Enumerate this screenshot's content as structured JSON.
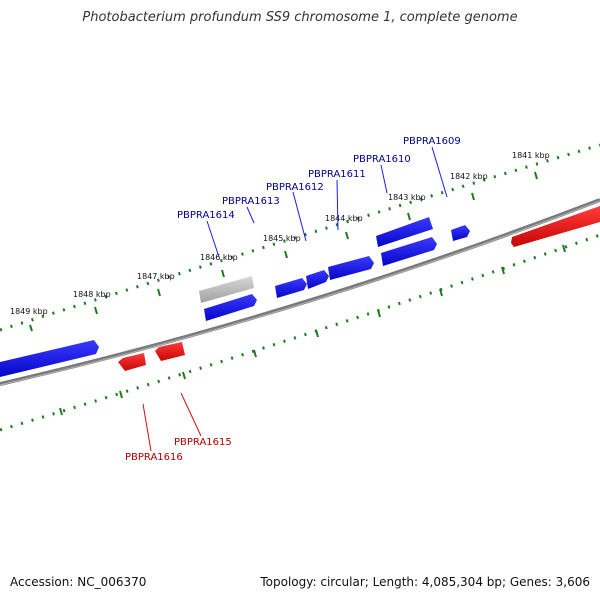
{
  "title": "Photobacterium profundum SS9 chromosome 1, complete genome",
  "footer": {
    "accession": "Accession: NC_006370",
    "summary": "Topology: circular; Length: 4,085,304 bp; Genes: 3,606"
  },
  "colors": {
    "forward_gene": "#1010ee",
    "reverse_gene": "#ee1010",
    "pseudo_gene": "#b8b8b8",
    "backbone": "#7a7a7a",
    "ruler": "#1f7a1f",
    "forward_label": "#00008b",
    "reverse_label": "#b00000"
  },
  "ruler": {
    "tick_labels": [
      "1841 kbp",
      "1842 kbp",
      "1843 kbp",
      "1844 kbp",
      "1845 kbp",
      "1846 kbp",
      "1847 kbp",
      "1848 kbp",
      "1849 kbp"
    ]
  },
  "forward_gene_labels": [
    "PBPRA1609",
    "PBPRA1610",
    "PBPRA1611",
    "PBPRA1612",
    "PBPRA1613",
    "PBPRA1614"
  ],
  "reverse_gene_labels": [
    "PBPRA1615",
    "PBPRA1616"
  ]
}
